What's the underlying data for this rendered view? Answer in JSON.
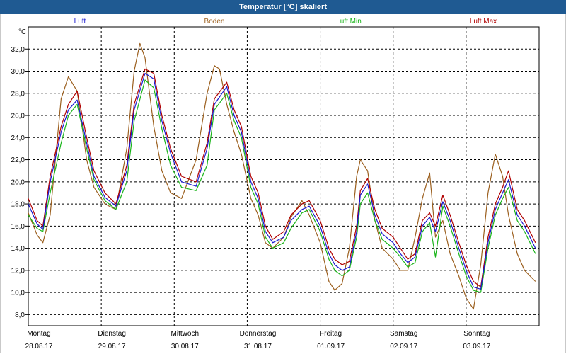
{
  "window": {
    "title": "Temperatur [°C] skaliert"
  },
  "chart_data": {
    "type": "line",
    "title": "Temperatur [°C] skaliert",
    "ylabel": "°C",
    "ylim": [
      7.0,
      34.0
    ],
    "yticks": [
      8.0,
      10.0,
      12.0,
      14.0,
      16.0,
      18.0,
      20.0,
      22.0,
      24.0,
      26.0,
      28.0,
      30.0,
      32.0
    ],
    "ytick_labels": [
      "8,0",
      "10,0",
      "12,0",
      "14,0",
      "16,0",
      "18,0",
      "20,0",
      "22,0",
      "24,0",
      "26,0",
      "28,0",
      "30,0",
      "32,0"
    ],
    "xlim": [
      0,
      7
    ],
    "grid": true,
    "legend_position": "top",
    "day_labels": [
      {
        "day": "Montag",
        "date": "28.08.17"
      },
      {
        "day": "Dienstag",
        "date": "29.08.17"
      },
      {
        "day": "Mittwoch",
        "date": "30.08.17"
      },
      {
        "day": "Donnerstag",
        "date": "31.08.17"
      },
      {
        "day": "Freitag",
        "date": "01.09.17"
      },
      {
        "day": "Samstag",
        "date": "02.09.17"
      },
      {
        "day": "Sonntag",
        "date": "03.09.17"
      }
    ],
    "series": [
      {
        "name": "Luft",
        "color": "#1a1ad0",
        "x": [
          0,
          0.12,
          0.2,
          0.3,
          0.45,
          0.55,
          0.67,
          0.8,
          0.9,
          1.05,
          1.2,
          1.35,
          1.45,
          1.6,
          1.72,
          1.83,
          1.95,
          2.1,
          2.3,
          2.45,
          2.55,
          2.72,
          2.82,
          2.92,
          3.05,
          3.15,
          3.25,
          3.35,
          3.5,
          3.6,
          3.75,
          3.85,
          4.0,
          4.12,
          4.2,
          4.3,
          4.4,
          4.5,
          4.55,
          4.65,
          4.75,
          4.85,
          5.0,
          5.1,
          5.2,
          5.3,
          5.4,
          5.5,
          5.58,
          5.68,
          5.78,
          5.9,
          6.0,
          6.1,
          6.2,
          6.3,
          6.4,
          6.5,
          6.58,
          6.7,
          6.8,
          6.95
        ],
        "y": [
          18.0,
          16.2,
          15.7,
          20.0,
          24.5,
          26.5,
          27.4,
          23.5,
          20.5,
          18.6,
          17.8,
          21.0,
          26.5,
          29.8,
          29.3,
          25.5,
          22.6,
          20.0,
          19.6,
          23.0,
          27.0,
          28.6,
          26.0,
          24.5,
          20.0,
          18.5,
          15.5,
          14.5,
          15.0,
          16.5,
          17.5,
          17.8,
          16.0,
          13.5,
          12.5,
          12.0,
          12.3,
          15.5,
          18.8,
          19.8,
          17.0,
          15.3,
          14.5,
          13.5,
          12.7,
          13.2,
          16.0,
          16.8,
          15.5,
          18.2,
          16.5,
          14.0,
          12.0,
          10.5,
          10.3,
          14.5,
          17.5,
          19.0,
          20.2,
          17.0,
          16.0,
          14.0
        ]
      },
      {
        "name": "Boden",
        "color": "#9b5f1e",
        "x": [
          0,
          0.12,
          0.2,
          0.3,
          0.45,
          0.55,
          0.67,
          0.8,
          0.9,
          1.05,
          1.2,
          1.35,
          1.45,
          1.53,
          1.6,
          1.72,
          1.83,
          1.95,
          2.1,
          2.3,
          2.45,
          2.55,
          2.62,
          2.72,
          2.82,
          2.92,
          3.05,
          3.15,
          3.25,
          3.35,
          3.5,
          3.6,
          3.75,
          3.85,
          4.0,
          4.12,
          4.2,
          4.3,
          4.4,
          4.5,
          4.55,
          4.65,
          4.75,
          4.85,
          5.0,
          5.1,
          5.2,
          5.3,
          5.4,
          5.5,
          5.58,
          5.68,
          5.78,
          5.9,
          6.0,
          6.1,
          6.2,
          6.3,
          6.4,
          6.5,
          6.58,
          6.7,
          6.8,
          6.95
        ],
        "y": [
          17.2,
          15.2,
          14.5,
          17.0,
          27.5,
          29.5,
          28.2,
          22.0,
          19.5,
          18.0,
          17.5,
          23.0,
          30.0,
          32.5,
          31.2,
          25.0,
          21.0,
          19.0,
          18.5,
          22.0,
          28.0,
          30.5,
          30.2,
          27.0,
          24.5,
          22.5,
          18.5,
          17.0,
          14.5,
          14.0,
          15.0,
          16.8,
          18.3,
          17.0,
          14.5,
          11.0,
          10.2,
          10.8,
          14.0,
          20.5,
          22.0,
          21.0,
          16.5,
          14.0,
          13.0,
          12.0,
          12.0,
          15.0,
          18.5,
          20.8,
          15.0,
          16.5,
          13.5,
          11.5,
          9.5,
          8.5,
          12.5,
          19.0,
          22.5,
          20.5,
          17.0,
          13.5,
          12.0,
          11.0
        ]
      },
      {
        "name": "Luft Min",
        "color": "#1ab51a",
        "x": [
          0,
          0.12,
          0.2,
          0.3,
          0.45,
          0.55,
          0.67,
          0.8,
          0.9,
          1.05,
          1.2,
          1.35,
          1.45,
          1.6,
          1.72,
          1.83,
          1.95,
          2.1,
          2.3,
          2.45,
          2.55,
          2.72,
          2.82,
          2.92,
          3.05,
          3.15,
          3.25,
          3.35,
          3.5,
          3.6,
          3.75,
          3.85,
          4.0,
          4.12,
          4.2,
          4.3,
          4.4,
          4.5,
          4.55,
          4.65,
          4.75,
          4.85,
          5.0,
          5.1,
          5.2,
          5.3,
          5.4,
          5.5,
          5.58,
          5.68,
          5.78,
          5.9,
          6.0,
          6.1,
          6.2,
          6.3,
          6.4,
          6.5,
          6.58,
          6.7,
          6.8,
          6.95
        ],
        "y": [
          17.0,
          15.8,
          15.5,
          19.0,
          23.5,
          26.0,
          27.0,
          23.0,
          20.2,
          18.3,
          17.5,
          20.0,
          25.5,
          29.2,
          28.5,
          24.8,
          21.5,
          19.5,
          19.2,
          21.5,
          26.5,
          28.0,
          25.5,
          24.0,
          19.5,
          18.0,
          15.0,
          14.0,
          14.5,
          15.8,
          17.2,
          17.5,
          15.5,
          13.0,
          12.0,
          11.5,
          12.0,
          15.0,
          18.0,
          19.0,
          16.5,
          14.8,
          14.0,
          13.2,
          12.3,
          12.7,
          15.5,
          16.3,
          13.2,
          17.8,
          16.0,
          13.5,
          11.5,
          10.2,
          10.0,
          14.0,
          17.0,
          18.5,
          19.5,
          16.5,
          15.5,
          13.5
        ]
      },
      {
        "name": "Luft Max",
        "color": "#b00000",
        "x": [
          0,
          0.12,
          0.2,
          0.3,
          0.45,
          0.55,
          0.67,
          0.8,
          0.9,
          1.05,
          1.2,
          1.35,
          1.45,
          1.6,
          1.72,
          1.83,
          1.95,
          2.1,
          2.3,
          2.45,
          2.55,
          2.72,
          2.82,
          2.92,
          3.05,
          3.15,
          3.25,
          3.35,
          3.5,
          3.6,
          3.75,
          3.85,
          4.0,
          4.12,
          4.2,
          4.3,
          4.4,
          4.5,
          4.55,
          4.65,
          4.75,
          4.85,
          5.0,
          5.1,
          5.2,
          5.3,
          5.4,
          5.5,
          5.58,
          5.68,
          5.78,
          5.9,
          6.0,
          6.1,
          6.2,
          6.3,
          6.4,
          6.5,
          6.58,
          6.7,
          6.8,
          6.95
        ],
        "y": [
          18.5,
          16.5,
          16.0,
          20.5,
          25.0,
          27.0,
          28.2,
          24.0,
          21.0,
          19.0,
          18.0,
          21.5,
          27.0,
          30.2,
          29.8,
          26.0,
          23.0,
          20.5,
          20.0,
          23.5,
          27.5,
          29.0,
          26.5,
          25.0,
          20.5,
          19.0,
          16.0,
          14.8,
          15.5,
          17.0,
          18.0,
          18.3,
          16.5,
          14.0,
          13.0,
          12.5,
          12.8,
          16.0,
          19.2,
          20.3,
          17.5,
          15.8,
          15.0,
          14.0,
          13.0,
          13.5,
          16.5,
          17.2,
          16.0,
          18.8,
          17.0,
          14.5,
          12.5,
          11.0,
          10.5,
          15.0,
          18.0,
          19.5,
          21.0,
          17.5,
          16.5,
          14.5
        ]
      }
    ]
  }
}
